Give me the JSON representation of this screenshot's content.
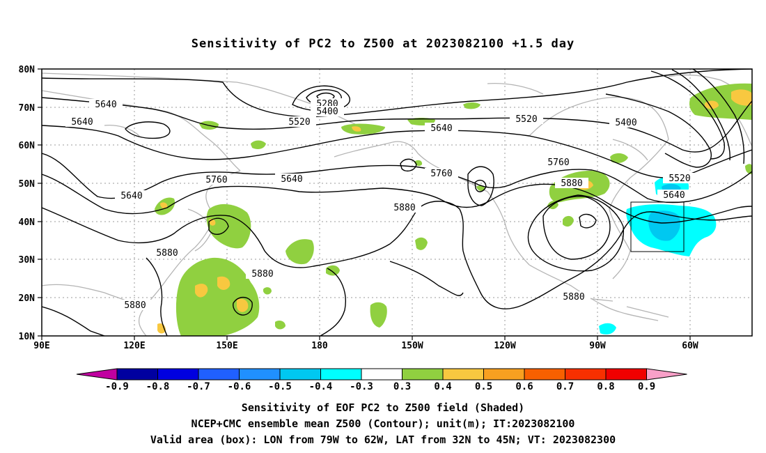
{
  "title": "Sensitivity of PC2 to Z500 at 2023082100 +1.5 day",
  "lat_labels": [
    "80N",
    "70N",
    "60N",
    "50N",
    "40N",
    "30N",
    "20N",
    "10N"
  ],
  "lon_labels": [
    "90E",
    "120E",
    "150E",
    "180",
    "150W",
    "120W",
    "90W",
    "60W"
  ],
  "contour_labels": [
    "5640",
    "5640",
    "5640",
    "5760",
    "5640",
    "5880",
    "5880",
    "5880",
    "5280",
    "5400",
    "5520",
    "5640",
    "5760",
    "5880",
    "5520",
    "5760",
    "5880",
    "5400",
    "5520",
    "5640",
    "5880"
  ],
  "colorbar": {
    "labels": [
      "-0.9",
      "-0.8",
      "-0.7",
      "-0.6",
      "-0.5",
      "-0.4",
      "-0.3",
      "0.3",
      "0.4",
      "0.5",
      "0.6",
      "0.7",
      "0.8",
      "0.9"
    ],
    "colors": [
      "#c000a0",
      "#0000a0",
      "#0000e0",
      "#2060ff",
      "#2090ff",
      "#00c8f0",
      "#00ffff",
      "#ffffff",
      "#90d040",
      "#f8c840",
      "#f8a020",
      "#f86000",
      "#f83000",
      "#f00000",
      "#f8a0c8"
    ]
  },
  "footer": {
    "line1": "Sensitivity of EOF PC2 to Z500 field (Shaded)",
    "line2": "NCEP+CMC ensemble mean Z500 (Contour); unit(m); IT:2023082100",
    "line3": "Valid area (box): LON from 79W to 62W, LAT from 32N to 45N; VT: 2023082300"
  },
  "valid_box": {
    "lon_from": "79W",
    "lon_to": "62W",
    "lat_from": "32N",
    "lat_to": "45N"
  }
}
